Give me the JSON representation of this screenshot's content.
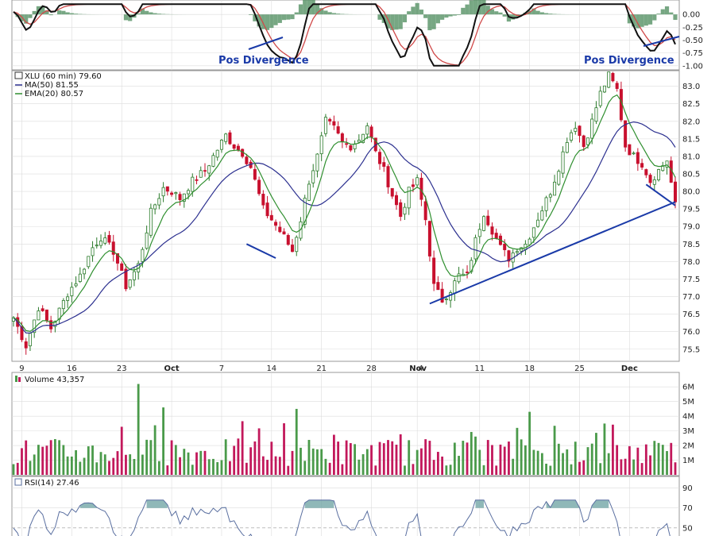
{
  "chart_data": {
    "type": "candlestick-with-indicators",
    "symbol": "XLU",
    "price_panel": {
      "legend_symbol": "XLU (60 min) 79.60",
      "legend_ma": "MA(50) 81.55",
      "legend_ema": "EMA(20) 80.57",
      "y_ticks": [
        75.5,
        76.0,
        76.5,
        77.0,
        77.5,
        78.0,
        78.5,
        79.0,
        79.5,
        80.0,
        80.5,
        81.0,
        81.5,
        82.0,
        82.5,
        83.0
      ],
      "y_tick_labels": [
        "75.5",
        "76.0",
        "76.5",
        "77.0",
        "77.5",
        "78.0",
        "78.5",
        "79.0",
        "79.5",
        "80.0",
        "80.5",
        "81.0",
        "81.5",
        "82.0",
        "82.5",
        "83.0"
      ],
      "ylim": [
        75.2,
        83.4
      ],
      "close_key_points": [
        {
          "i": 0,
          "v": 76.4
        },
        {
          "i": 3,
          "v": 75.6
        },
        {
          "i": 6,
          "v": 76.7
        },
        {
          "i": 9,
          "v": 76.1
        },
        {
          "i": 13,
          "v": 77.1
        },
        {
          "i": 16,
          "v": 77.6
        },
        {
          "i": 19,
          "v": 78.4
        },
        {
          "i": 21,
          "v": 78.7
        },
        {
          "i": 24,
          "v": 78.3
        },
        {
          "i": 27,
          "v": 77.3
        },
        {
          "i": 30,
          "v": 77.9
        },
        {
          "i": 33,
          "v": 79.4
        },
        {
          "i": 36,
          "v": 80.1
        },
        {
          "i": 38,
          "v": 80.0
        },
        {
          "i": 40,
          "v": 79.8
        },
        {
          "i": 43,
          "v": 80.3
        },
        {
          "i": 46,
          "v": 80.6
        },
        {
          "i": 49,
          "v": 81.2
        },
        {
          "i": 51,
          "v": 81.6
        },
        {
          "i": 53,
          "v": 81.3
        },
        {
          "i": 55,
          "v": 81.1
        },
        {
          "i": 57,
          "v": 80.7
        },
        {
          "i": 60,
          "v": 79.5
        },
        {
          "i": 62,
          "v": 79.2
        },
        {
          "i": 65,
          "v": 78.7
        },
        {
          "i": 67,
          "v": 78.3
        },
        {
          "i": 69,
          "v": 79.2
        },
        {
          "i": 71,
          "v": 80.3
        },
        {
          "i": 73,
          "v": 81.0
        },
        {
          "i": 75,
          "v": 82.0
        },
        {
          "i": 77,
          "v": 81.8
        },
        {
          "i": 79,
          "v": 81.4
        },
        {
          "i": 81,
          "v": 81.3
        },
        {
          "i": 83,
          "v": 81.5
        },
        {
          "i": 85,
          "v": 81.9
        },
        {
          "i": 87,
          "v": 81.1
        },
        {
          "i": 89,
          "v": 80.6
        },
        {
          "i": 91,
          "v": 79.9
        },
        {
          "i": 93,
          "v": 79.3
        },
        {
          "i": 95,
          "v": 80.0
        },
        {
          "i": 97,
          "v": 80.3
        },
        {
          "i": 99,
          "v": 79.2
        },
        {
          "i": 101,
          "v": 77.3
        },
        {
          "i": 103,
          "v": 76.9
        },
        {
          "i": 105,
          "v": 77.2
        },
        {
          "i": 107,
          "v": 77.6
        },
        {
          "i": 109,
          "v": 77.6
        },
        {
          "i": 111,
          "v": 78.6
        },
        {
          "i": 113,
          "v": 79.4
        },
        {
          "i": 115,
          "v": 78.9
        },
        {
          "i": 117,
          "v": 78.4
        },
        {
          "i": 119,
          "v": 78.1
        },
        {
          "i": 121,
          "v": 78.4
        },
        {
          "i": 123,
          "v": 78.5
        },
        {
          "i": 125,
          "v": 79.0
        },
        {
          "i": 127,
          "v": 79.5
        },
        {
          "i": 129,
          "v": 80.0
        },
        {
          "i": 131,
          "v": 80.7
        },
        {
          "i": 133,
          "v": 81.5
        },
        {
          "i": 135,
          "v": 81.9
        },
        {
          "i": 137,
          "v": 81.3
        },
        {
          "i": 139,
          "v": 82.0
        },
        {
          "i": 141,
          "v": 82.8
        },
        {
          "i": 143,
          "v": 83.3
        },
        {
          "i": 145,
          "v": 82.9
        },
        {
          "i": 147,
          "v": 81.3
        },
        {
          "i": 149,
          "v": 81.0
        },
        {
          "i": 151,
          "v": 80.8
        },
        {
          "i": 153,
          "v": 80.3
        },
        {
          "i": 155,
          "v": 80.6
        },
        {
          "i": 157,
          "v": 80.9
        },
        {
          "i": 159,
          "v": 79.6
        }
      ],
      "bar_count": 160,
      "annotations_lines": [
        {
          "from": [
            56,
            78.5
          ],
          "to": [
            63,
            78.1
          ]
        },
        {
          "from": [
            100,
            76.8
          ],
          "to": [
            159,
            79.7
          ]
        },
        {
          "from": [
            152,
            80.2
          ],
          "to": [
            159,
            79.6
          ]
        }
      ]
    },
    "macd_panel": {
      "y_ticks": [
        0.0,
        -0.25,
        -0.5,
        -0.75,
        -1.0
      ],
      "y_tick_labels": [
        "0.00",
        "-0.25",
        "-0.50",
        "-0.75",
        "-1.00"
      ],
      "annotations": [
        "Pos Divergence",
        "Pos Divergence"
      ]
    },
    "x_axis": {
      "labels": [
        {
          "i": 2,
          "text": "9",
          "bold": false
        },
        {
          "i": 14,
          "text": "16",
          "bold": false
        },
        {
          "i": 26,
          "text": "23",
          "bold": false
        },
        {
          "i": 38,
          "text": "Oct",
          "bold": true
        },
        {
          "i": 50,
          "text": "7",
          "bold": false
        },
        {
          "i": 62,
          "text": "14",
          "bold": false
        },
        {
          "i": 74,
          "text": "21",
          "bold": false
        },
        {
          "i": 86,
          "text": "28",
          "bold": false
        },
        {
          "i": 97,
          "text": "Nov",
          "bold": true
        },
        {
          "i": 99,
          "text": "4",
          "bold": false
        },
        {
          "i": 112,
          "text": "11",
          "bold": false
        },
        {
          "i": 124,
          "text": "18",
          "bold": false
        },
        {
          "i": 136,
          "text": "25",
          "bold": false
        },
        {
          "i": 148,
          "text": "Dec",
          "bold": true
        }
      ]
    },
    "volume_panel": {
      "legend": "Volume 43,357",
      "y_ticks": [
        1,
        2,
        3,
        4,
        5,
        6
      ],
      "y_tick_labels": [
        "1M",
        "2M",
        "3M",
        "4M",
        "5M",
        "6M"
      ],
      "ylim": [
        0,
        6.5
      ]
    },
    "rsi_panel": {
      "legend": "RSI(14) 27.46",
      "y_ticks": [
        90,
        70,
        50
      ],
      "y_tick_labels": [
        "90",
        "70",
        "50"
      ]
    },
    "colors": {
      "up": "#2a7a2a",
      "down": "#c8102e",
      "ma50": "#2b2f8f",
      "ema20": "#2f8f2f",
      "annotation": "#1a3aa8",
      "grid": "#dcdcdc",
      "volume_up": "#4a9a4a",
      "volume_down": "#c2185b",
      "rsi_line": "#5a6fa0",
      "rsi_fill": "#6aa0a0"
    }
  }
}
